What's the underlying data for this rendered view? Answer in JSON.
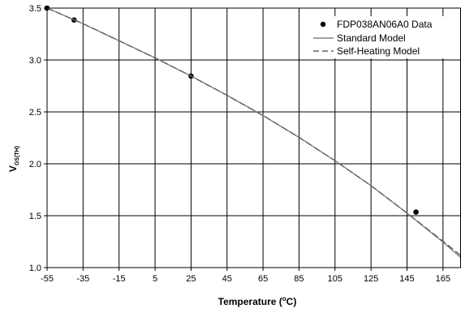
{
  "chart_data": {
    "type": "line",
    "xlabel": "Temperature (",
    "xlabel_sup": "o",
    "xlabel_tail": "C)",
    "ylabel_main": "V",
    "ylabel_sub": "GS(TH)",
    "xlim": [
      -55,
      175
    ],
    "ylim": [
      1.0,
      3.5
    ],
    "xticks": [
      -55,
      -35,
      -15,
      5,
      25,
      45,
      65,
      85,
      105,
      125,
      145,
      165
    ],
    "yticks": [
      "1.0",
      "1.5",
      "2.0",
      "2.5",
      "3.0",
      "3.5"
    ],
    "ytick_values": [
      1.0,
      1.5,
      2.0,
      2.5,
      3.0,
      3.5
    ],
    "grid": true,
    "legend_position": "top-right",
    "series": [
      {
        "name": "FDP038AN06A0 Data",
        "style": "markers",
        "color": "#000000",
        "x": [
          -55,
          -40,
          25,
          150
        ],
        "y": [
          3.5,
          3.385,
          2.845,
          1.535
        ]
      },
      {
        "name": "Standard Model",
        "style": "solid",
        "color": "#808080",
        "x": [
          -55,
          -35,
          -15,
          5,
          25,
          45,
          65,
          85,
          105,
          125,
          145,
          165,
          175
        ],
        "y": [
          3.5,
          3.35,
          3.185,
          3.02,
          2.845,
          2.66,
          2.465,
          2.255,
          2.03,
          1.79,
          1.525,
          1.245,
          1.095
        ]
      },
      {
        "name": "Self-Heating Model",
        "style": "dashed",
        "color": "#606060",
        "x": [
          -55,
          -35,
          -15,
          5,
          25,
          45,
          65,
          85,
          105,
          125,
          145,
          165,
          175
        ],
        "y": [
          3.5,
          3.35,
          3.185,
          3.02,
          2.845,
          2.66,
          2.465,
          2.255,
          2.03,
          1.79,
          1.525,
          1.255,
          1.115
        ]
      }
    ]
  }
}
